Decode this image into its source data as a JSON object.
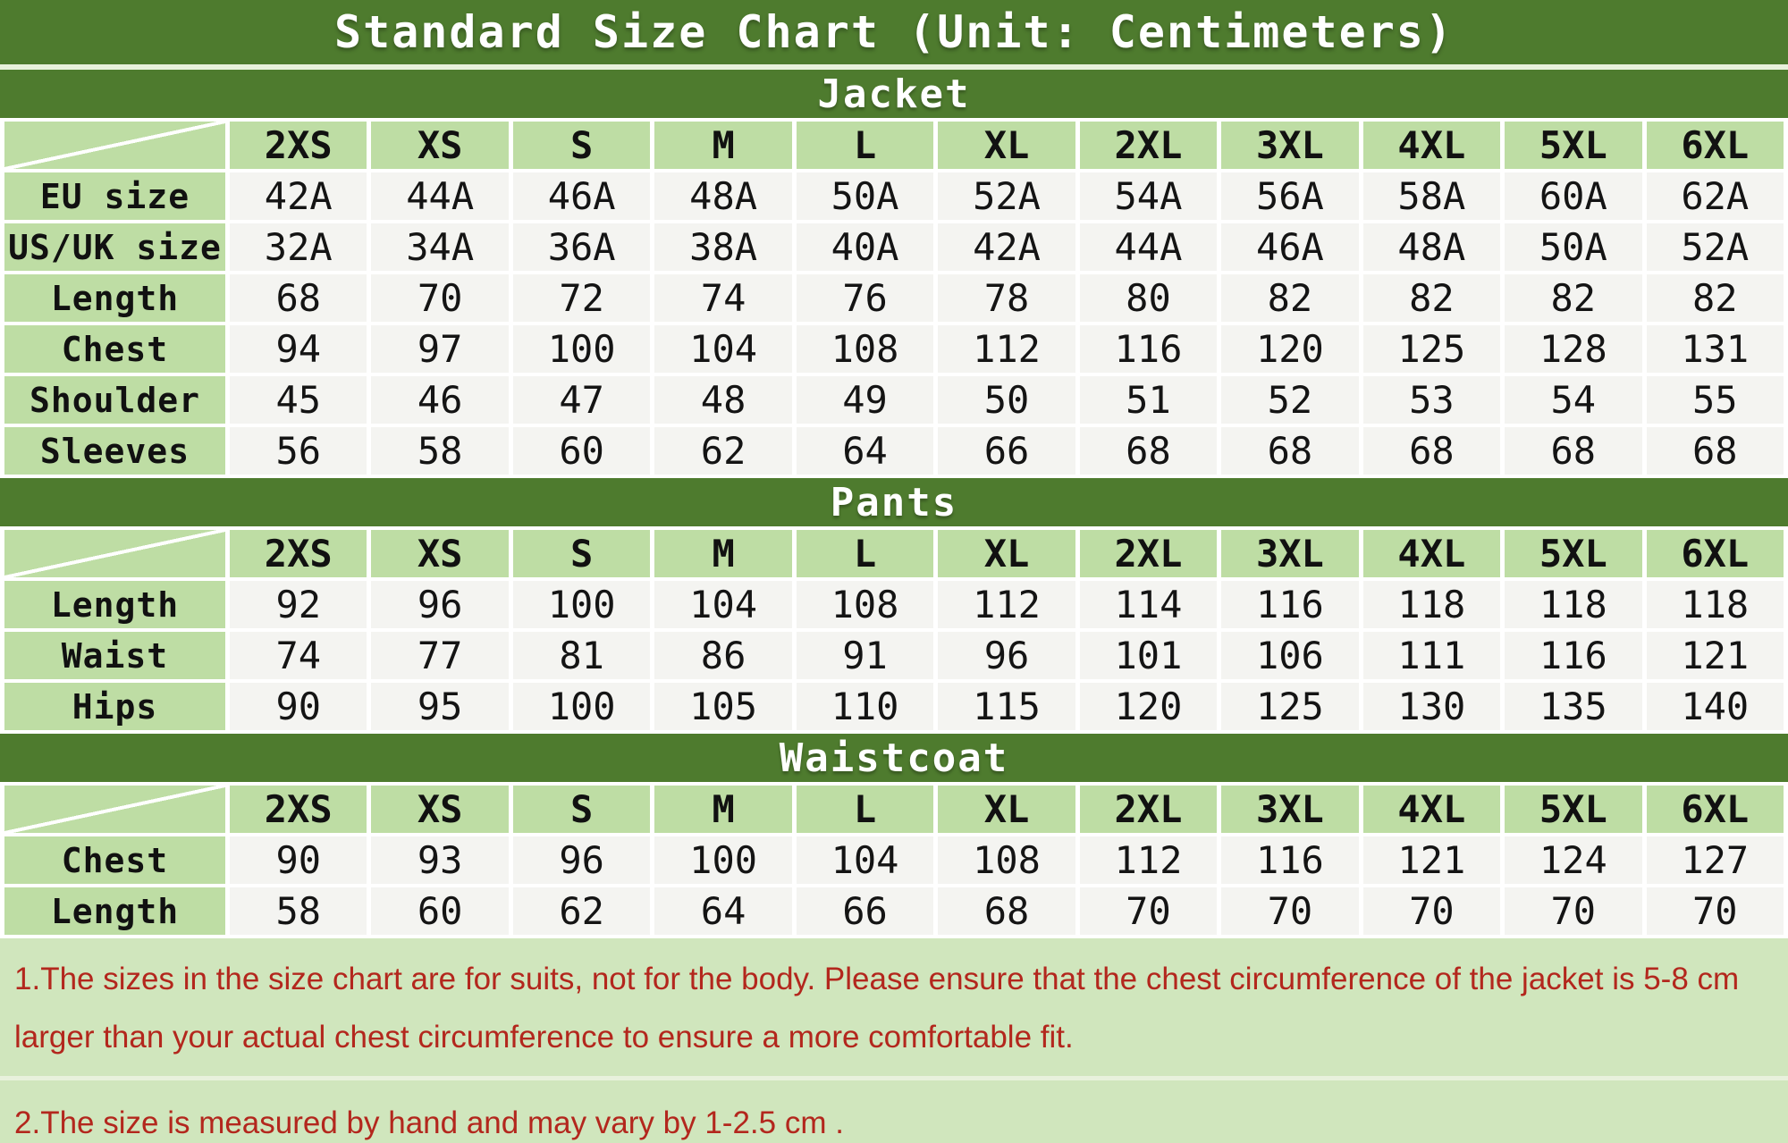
{
  "title": "Standard Size Chart (Unit: Centimeters)",
  "colors": {
    "green_dark": "#4e7b2e",
    "cell_green": "#bedda4",
    "cell_bg": "#f4f4f1",
    "notes_bg": "#d0e6bd",
    "note_red": "#b3271d",
    "strip": "#3f3f3d",
    "divider": "#e8f1dc"
  },
  "chart_data": [
    {
      "type": "table",
      "title": "Jacket",
      "sizes": [
        "2XS",
        "XS",
        "S",
        "M",
        "L",
        "XL",
        "2XL",
        "3XL",
        "4XL",
        "5XL",
        "6XL"
      ],
      "rows": [
        {
          "label": "EU size",
          "values": [
            "42A",
            "44A",
            "46A",
            "48A",
            "50A",
            "52A",
            "54A",
            "56A",
            "58A",
            "60A",
            "62A"
          ]
        },
        {
          "label": "US/UK size",
          "values": [
            "32A",
            "34A",
            "36A",
            "38A",
            "40A",
            "42A",
            "44A",
            "46A",
            "48A",
            "50A",
            "52A"
          ]
        },
        {
          "label": "Length",
          "values": [
            "68",
            "70",
            "72",
            "74",
            "76",
            "78",
            "80",
            "82",
            "82",
            "82",
            "82"
          ]
        },
        {
          "label": "Chest",
          "values": [
            "94",
            "97",
            "100",
            "104",
            "108",
            "112",
            "116",
            "120",
            "125",
            "128",
            "131"
          ]
        },
        {
          "label": "Shoulder",
          "values": [
            "45",
            "46",
            "47",
            "48",
            "49",
            "50",
            "51",
            "52",
            "53",
            "54",
            "55"
          ]
        },
        {
          "label": "Sleeves",
          "values": [
            "56",
            "58",
            "60",
            "62",
            "64",
            "66",
            "68",
            "68",
            "68",
            "68",
            "68"
          ]
        }
      ]
    },
    {
      "type": "table",
      "title": "Pants",
      "sizes": [
        "2XS",
        "XS",
        "S",
        "M",
        "L",
        "XL",
        "2XL",
        "3XL",
        "4XL",
        "5XL",
        "6XL"
      ],
      "rows": [
        {
          "label": "Length",
          "values": [
            "92",
            "96",
            "100",
            "104",
            "108",
            "112",
            "114",
            "116",
            "118",
            "118",
            "118"
          ]
        },
        {
          "label": "Waist",
          "values": [
            "74",
            "77",
            "81",
            "86",
            "91",
            "96",
            "101",
            "106",
            "111",
            "116",
            "121"
          ]
        },
        {
          "label": "Hips",
          "values": [
            "90",
            "95",
            "100",
            "105",
            "110",
            "115",
            "120",
            "125",
            "130",
            "135",
            "140"
          ]
        }
      ]
    },
    {
      "type": "table",
      "title": "Waistcoat",
      "sizes": [
        "2XS",
        "XS",
        "S",
        "M",
        "L",
        "XL",
        "2XL",
        "3XL",
        "4XL",
        "5XL",
        "6XL"
      ],
      "rows": [
        {
          "label": "Chest",
          "values": [
            "90",
            "93",
            "96",
            "100",
            "104",
            "108",
            "112",
            "116",
            "121",
            "124",
            "127"
          ]
        },
        {
          "label": "Length",
          "values": [
            "58",
            "60",
            "62",
            "64",
            "66",
            "68",
            "70",
            "70",
            "70",
            "70",
            "70"
          ]
        }
      ]
    }
  ],
  "notes": [
    "1.The sizes in the size chart are for suits, not for the body. Please ensure that the chest circumference of the jacket is 5-8 cm larger than your actual chest circumference to ensure a more comfortable fit.",
    "2.The size is measured by hand and may vary by 1-2.5 cm ."
  ]
}
